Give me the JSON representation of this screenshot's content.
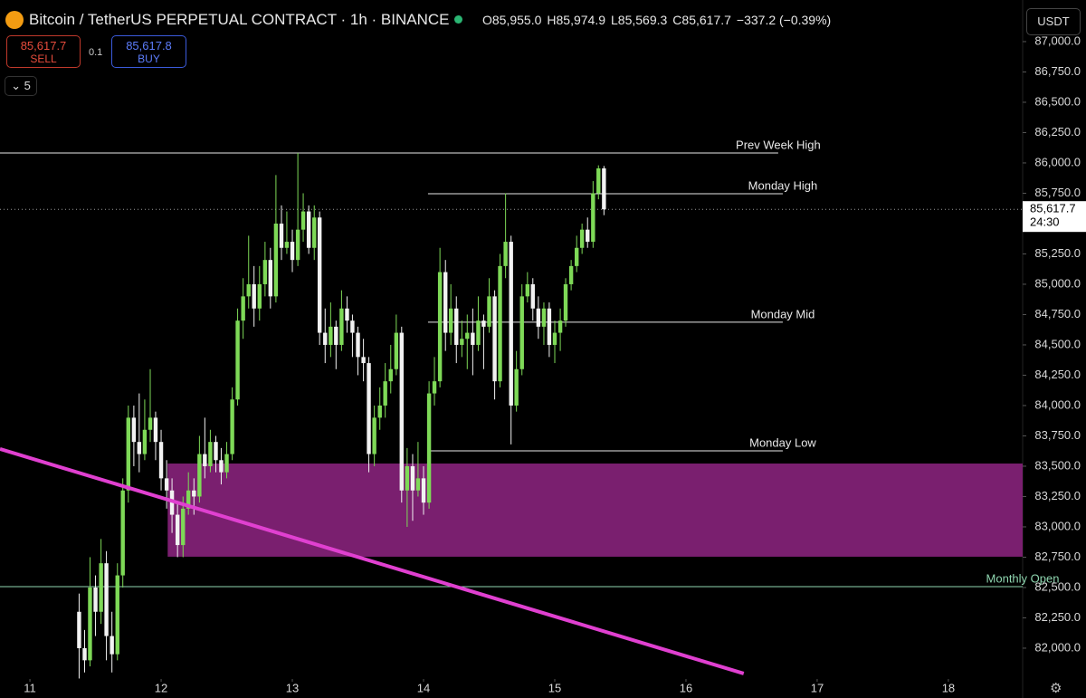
{
  "toolbar": {
    "title": "Bitcoin / TetherUS PERPETUAL CONTRACT · 1h · BINANCE",
    "ohlc": [
      "O85,955.0",
      "H85,974.9",
      "L85,569.3",
      "C85,617.7",
      "−337.2 (−0.39%)"
    ],
    "sell_price": "85,617.7",
    "sell_label": "SELL",
    "spread": "0.1",
    "buy_price": "85,617.8",
    "buy_label": "BUY",
    "indicators": "5",
    "currency": "USDT",
    "countdown": "24:30"
  },
  "chart_data": {
    "type": "candlestick",
    "x": [
      11.375,
      11.417,
      11.458,
      11.5,
      11.542,
      11.583,
      11.625,
      11.667,
      11.708,
      11.75,
      11.792,
      11.833,
      11.875,
      11.917,
      11.958,
      12,
      12.042,
      12.083,
      12.125,
      12.167,
      12.208,
      12.25,
      12.292,
      12.333,
      12.375,
      12.417,
      12.458,
      12.5,
      12.542,
      12.583,
      12.625,
      12.667,
      12.708,
      12.75,
      12.792,
      12.833,
      12.875,
      12.917,
      12.958,
      13,
      13.042,
      13.083,
      13.125,
      13.167,
      13.208,
      13.25,
      13.292,
      13.333,
      13.375,
      13.417,
      13.458,
      13.5,
      13.542,
      13.583,
      13.625,
      13.667,
      13.708,
      13.75,
      13.792,
      13.833,
      13.875,
      13.917,
      13.958,
      14,
      14.042,
      14.083,
      14.125,
      14.167,
      14.208,
      14.25,
      14.292,
      14.333,
      14.375,
      14.417,
      14.458,
      14.5,
      14.542,
      14.583,
      14.625,
      14.667,
      14.708,
      14.75,
      14.792,
      14.833,
      14.875,
      14.917,
      14.958,
      15,
      15.042,
      15.083,
      15.125,
      15.167,
      15.208,
      15.25,
      15.292,
      15.333,
      15.375
    ],
    "open": [
      82300,
      82000,
      81900,
      82500,
      82300,
      82700,
      82100,
      81950,
      82600,
      83300,
      83900,
      83700,
      83600,
      83800,
      83900,
      83700,
      83400,
      83300,
      83100,
      82850,
      83150,
      83300,
      83250,
      83600,
      83500,
      83700,
      83550,
      83450,
      83600,
      84050,
      84700,
      84900,
      85000,
      84800,
      85000,
      85200,
      84900,
      85500,
      85300,
      85350,
      85200,
      85450,
      85600,
      85300,
      85550,
      84600,
      84500,
      84650,
      84500,
      84800,
      84700,
      84600,
      84400,
      84350,
      83600,
      83900,
      84000,
      84200,
      84300,
      84600,
      83300,
      83500,
      83300,
      83400,
      83200,
      84100,
      84200,
      85100,
      84600,
      84800,
      84500,
      84550,
      84600,
      84500,
      84700,
      84650,
      84900,
      84200,
      85150,
      85350,
      84000,
      84300,
      84900,
      85000,
      84800,
      84650,
      84800,
      84500,
      84600,
      84700,
      85000,
      85150,
      85300,
      85450,
      85350,
      85750,
      85955
    ],
    "high": [
      82450,
      82150,
      82750,
      82600,
      82900,
      82800,
      82300,
      82700,
      83400,
      84000,
      84000,
      84100,
      84050,
      84300,
      83950,
      83800,
      83550,
      83400,
      83200,
      83250,
      83450,
      83400,
      83750,
      83900,
      83800,
      83750,
      83650,
      83700,
      84150,
      84800,
      85050,
      85400,
      85150,
      85150,
      85350,
      85300,
      85900,
      85650,
      85600,
      85450,
      86082,
      85750,
      85650,
      85650,
      85600,
      84800,
      84850,
      84700,
      84950,
      84900,
      84750,
      84650,
      84550,
      84400,
      84000,
      84150,
      84350,
      84500,
      84750,
      84650,
      83650,
      83600,
      83700,
      83500,
      84200,
      84400,
      85300,
      85200,
      85000,
      84900,
      84700,
      84750,
      84800,
      84900,
      84750,
      85050,
      84950,
      85250,
      85750,
      85400,
      84450,
      85000,
      85100,
      85050,
      84900,
      84850,
      84850,
      84700,
      84800,
      85050,
      85200,
      85400,
      85500,
      85550,
      85850,
      85980,
      85974.9
    ],
    "low": [
      81750,
      81800,
      81850,
      82100,
      82200,
      81900,
      81800,
      81900,
      82500,
      83200,
      83500,
      83450,
      83550,
      83700,
      83550,
      83300,
      83150,
      82950,
      82750,
      82750,
      83100,
      83100,
      83200,
      83400,
      83450,
      83450,
      83350,
      83400,
      83550,
      84000,
      84550,
      84800,
      84650,
      84700,
      84900,
      84800,
      84850,
      85200,
      85250,
      85100,
      85150,
      85350,
      85250,
      85200,
      84500,
      84350,
      84400,
      84300,
      84450,
      84600,
      84400,
      84250,
      84200,
      83450,
      83500,
      83800,
      83900,
      84100,
      84250,
      83200,
      83000,
      83050,
      83250,
      83100,
      83150,
      84000,
      84150,
      84450,
      84500,
      84350,
      84400,
      84300,
      84250,
      84450,
      84300,
      84600,
      84050,
      84150,
      85050,
      83680,
      83950,
      84250,
      84850,
      84700,
      84550,
      84500,
      84400,
      84350,
      84450,
      84650,
      84950,
      85100,
      85250,
      85300,
      85300,
      85700,
      85569.3
    ],
    "close": [
      82000,
      81900,
      82500,
      82300,
      82700,
      82100,
      81950,
      82600,
      83300,
      83900,
      83700,
      83600,
      83800,
      83900,
      83700,
      83400,
      83300,
      83100,
      82850,
      83150,
      83300,
      83250,
      83600,
      83500,
      83700,
      83550,
      83450,
      83600,
      84050,
      84700,
      84900,
      85000,
      84800,
      85000,
      85200,
      84900,
      85500,
      85300,
      85350,
      85200,
      85450,
      85600,
      85300,
      85550,
      84600,
      84500,
      84650,
      84500,
      84800,
      84700,
      84600,
      84400,
      84350,
      83600,
      83900,
      84000,
      84200,
      84300,
      84600,
      83300,
      83500,
      83300,
      83400,
      83200,
      84100,
      84200,
      85100,
      84600,
      84800,
      84500,
      84550,
      84600,
      84500,
      84700,
      84650,
      84900,
      84200,
      85150,
      85350,
      84000,
      84300,
      84900,
      85000,
      84800,
      84650,
      84800,
      84500,
      84600,
      84700,
      85000,
      85150,
      85300,
      85450,
      85350,
      85750,
      85955,
      85617.7
    ],
    "up_color": "#7ed957",
    "down_color": "#f2f2f2",
    "xlim": [
      10.772,
      18.566
    ],
    "ylim": [
      81746,
      87343
    ],
    "xticks": [
      11,
      12,
      13,
      14,
      15,
      16,
      17,
      18
    ],
    "yticks": [
      {
        "value": 82000,
        "label": "82,000.0"
      },
      {
        "value": 82250,
        "label": "82,250.0"
      },
      {
        "value": 82500,
        "label": "82,500.0"
      },
      {
        "value": 82750,
        "label": "82,750.0"
      },
      {
        "value": 83000,
        "label": "83,000.0"
      },
      {
        "value": 83250,
        "label": "83,250.0"
      },
      {
        "value": 83500,
        "label": "83,500.0"
      },
      {
        "value": 83750,
        "label": "83,750.0"
      },
      {
        "value": 84000,
        "label": "84,000.0"
      },
      {
        "value": 84250,
        "label": "84,250.0"
      },
      {
        "value": 84500,
        "label": "84,500.0"
      },
      {
        "value": 84750,
        "label": "84,750.0"
      },
      {
        "value": 85000,
        "label": "85,000.0"
      },
      {
        "value": 85250,
        "label": "85,250.0"
      },
      {
        "value": 85500,
        "label": "85,500.0"
      },
      {
        "value": 85750,
        "label": "85,750.0"
      },
      {
        "value": 86000,
        "label": "86,000.0"
      },
      {
        "value": 86250,
        "label": "86,250.0"
      },
      {
        "value": 86500,
        "label": "86,500.0"
      },
      {
        "value": 86750,
        "label": "86,750.0"
      },
      {
        "value": 87000,
        "label": "87,000.0"
      }
    ],
    "last_price": {
      "value": 85617.7,
      "label": "85,617.7"
    },
    "levels": [
      {
        "label": "Prev Week High",
        "value": 86082,
        "x": [
          10.772,
          16.703
        ],
        "color": "#e8e8e8"
      },
      {
        "label": "Monday High",
        "value": 85746,
        "x": [
          14.034,
          16.738
        ],
        "color": "#e8e8e8"
      },
      {
        "label": "Monday Mid",
        "value": 84687,
        "x": [
          14.034,
          16.738
        ],
        "color": "#e8e8e8"
      },
      {
        "label": "Monday Low",
        "value": 83627,
        "x": [
          14.034,
          16.738
        ],
        "color": "#e8e8e8"
      },
      {
        "label": "Monthly Open",
        "value": 82507,
        "x": [
          10.772,
          18.566
        ],
        "color": "#8fd6b0"
      }
    ],
    "zone": {
      "low": 82754,
      "high": 83522,
      "x": [
        12.05,
        18.566
      ],
      "color": "#7a1f6f"
    },
    "trendline": {
      "x": [
        10.772,
        16.44
      ],
      "y": [
        83642,
        81791
      ],
      "color": "#e040d0"
    }
  }
}
